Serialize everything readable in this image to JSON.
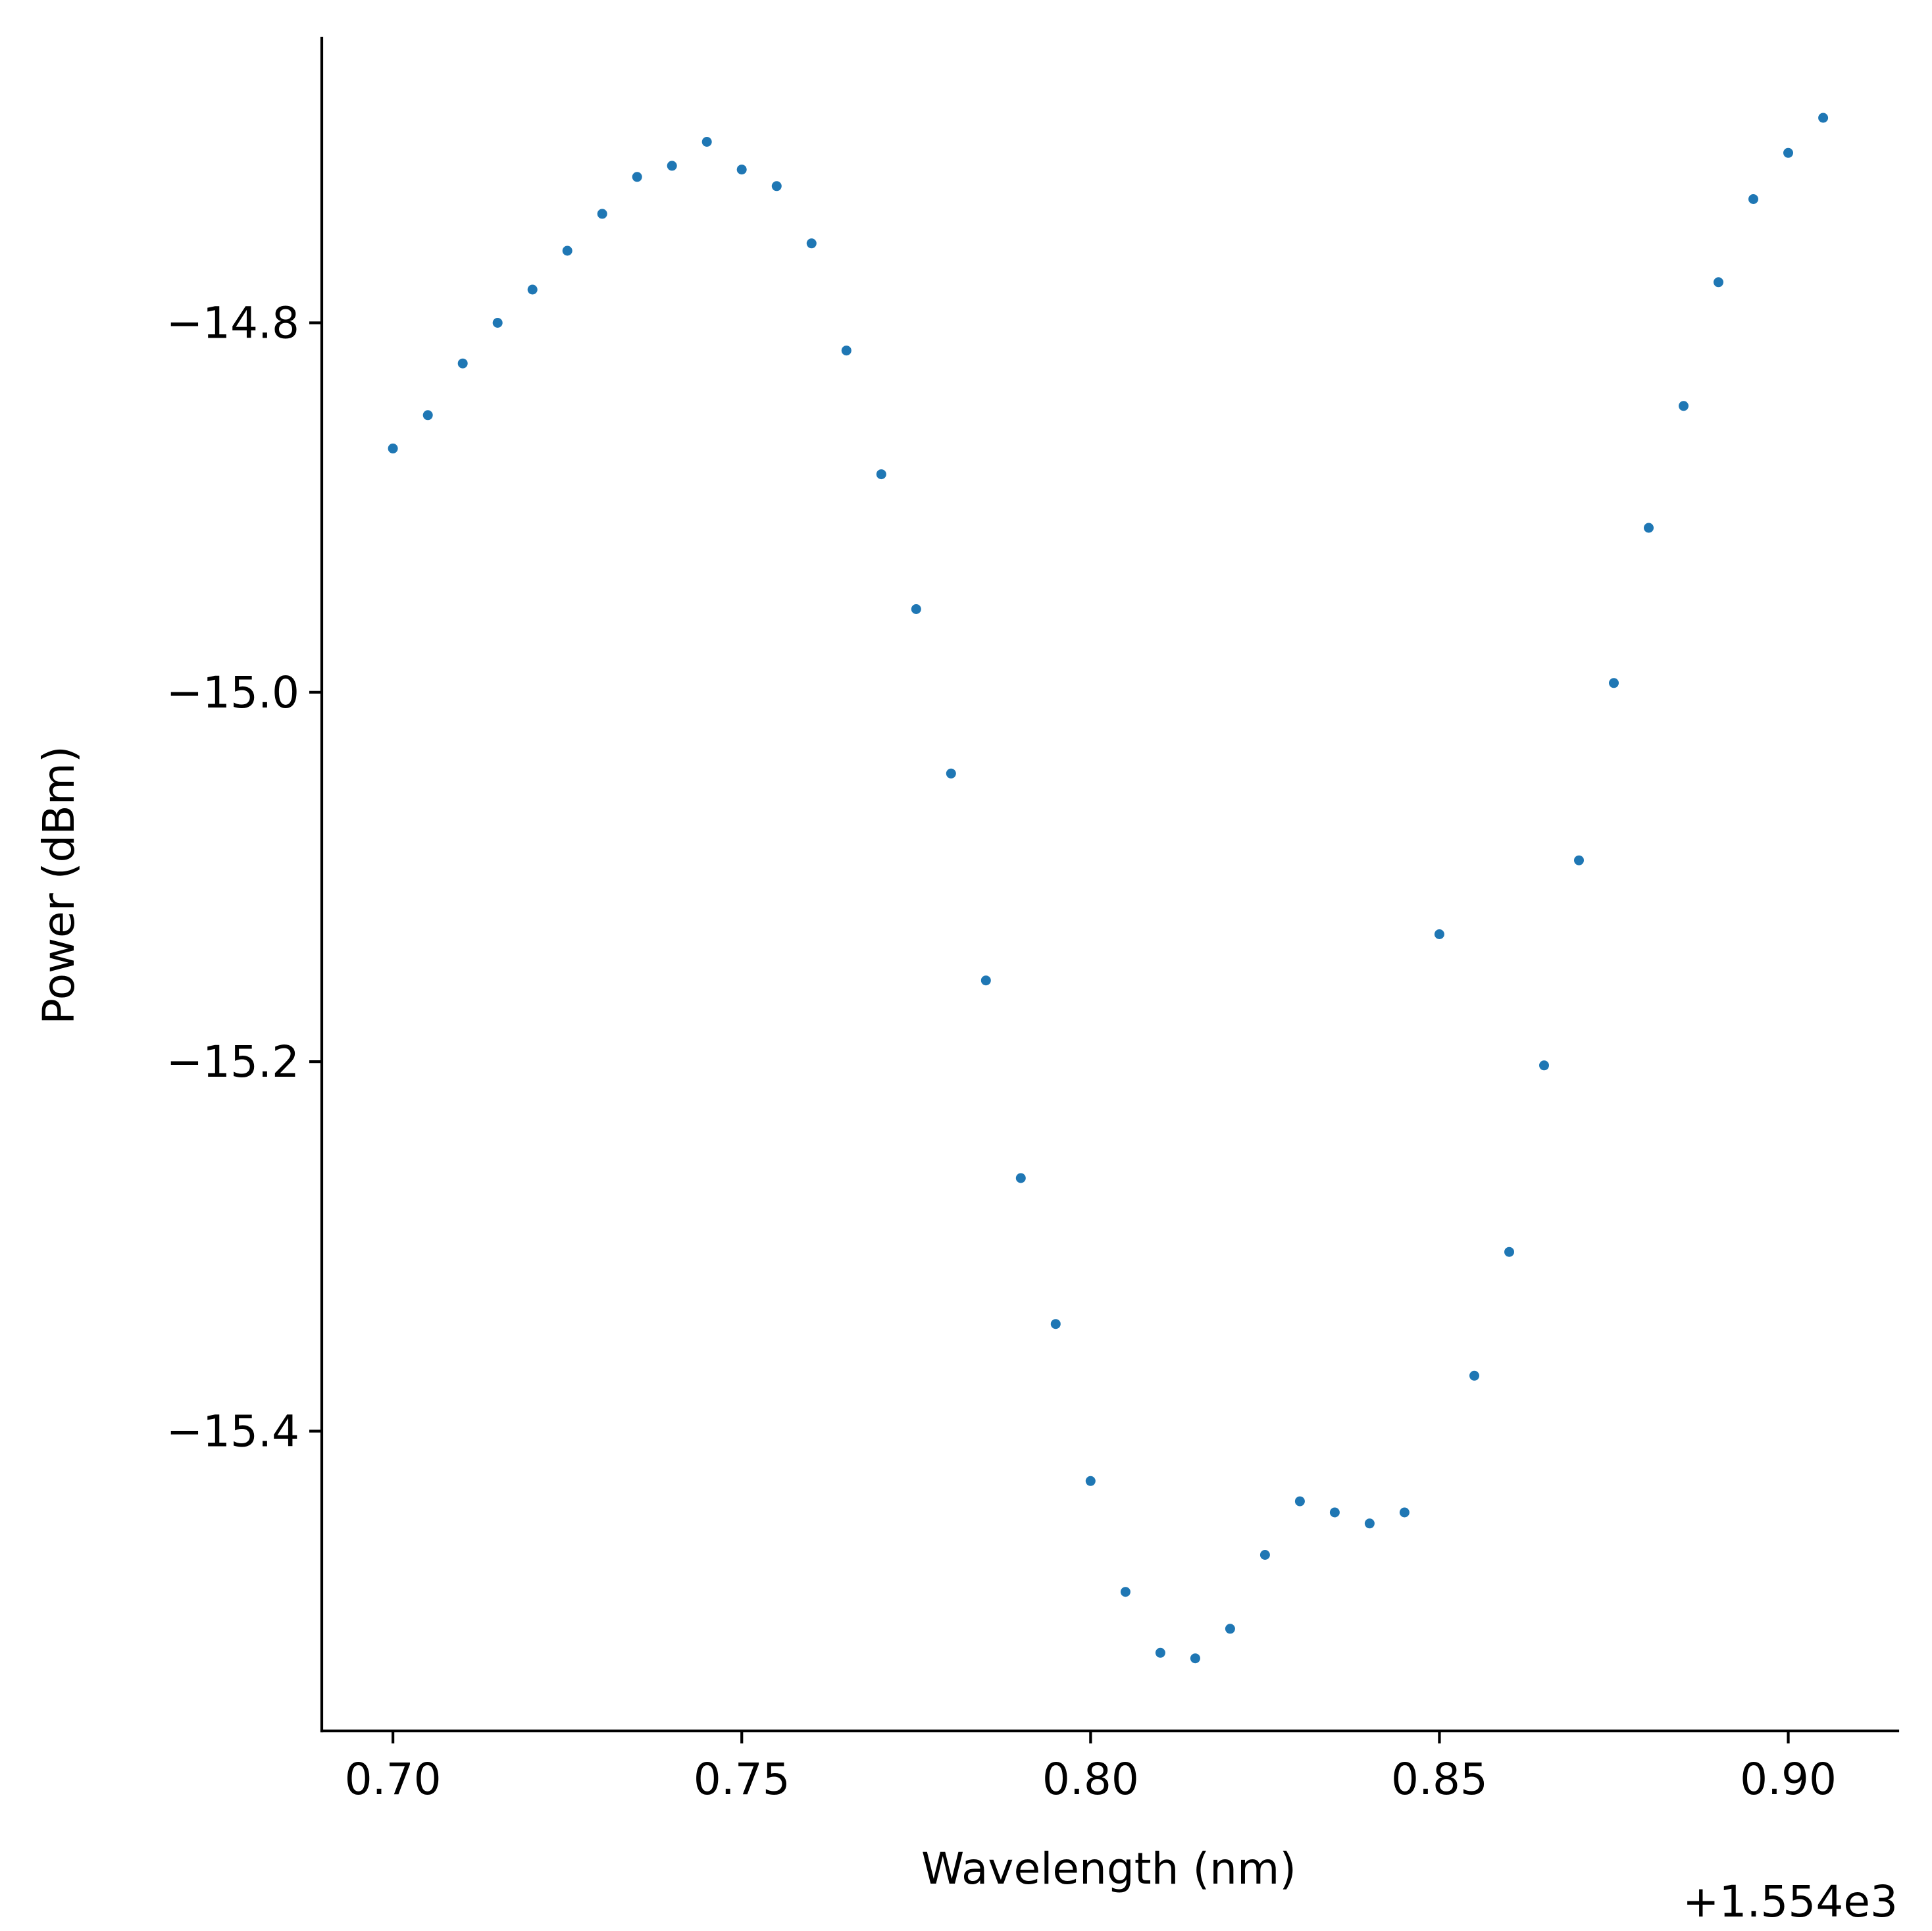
{
  "chart_data": {
    "type": "scatter",
    "title": "",
    "xlabel": "Wavelength (nm)",
    "ylabel": "Power (dBm)",
    "x_offset_label": "+1.554e3",
    "x_tick_labels": [
      "0.70",
      "0.75",
      "0.80",
      "0.85",
      "0.90"
    ],
    "y_tick_labels": [
      "−15.4",
      "−15.2",
      "−15.0",
      "−14.8"
    ],
    "xlim": [
      0.6898,
      0.9157
    ],
    "ylim": [
      -15.5623,
      -14.6459
    ],
    "grid": false,
    "legend": "none",
    "marker_color": "#1f77b4",
    "series": [
      {
        "x": [
          0.7,
          0.705,
          0.71,
          0.715,
          0.72,
          0.725,
          0.73,
          0.735,
          0.74,
          0.745,
          0.75,
          0.755,
          0.76,
          0.765,
          0.77,
          0.775,
          0.78,
          0.785,
          0.79,
          0.795,
          0.8,
          0.805,
          0.81,
          0.815,
          0.82,
          0.825,
          0.83,
          0.835,
          0.84,
          0.845,
          0.85,
          0.855,
          0.86,
          0.865,
          0.87,
          0.875,
          0.88,
          0.885,
          0.89,
          0.895,
          0.9,
          0.905
        ],
        "y": [
          -14.868,
          -14.85,
          -14.822,
          -14.8,
          -14.782,
          -14.761,
          -14.741,
          -14.721,
          -14.715,
          -14.702,
          -14.717,
          -14.726,
          -14.757,
          -14.815,
          -14.882,
          -14.955,
          -15.044,
          -15.156,
          -15.263,
          -15.342,
          -15.427,
          -15.487,
          -15.52,
          -15.523,
          -15.507,
          -15.467,
          -15.438,
          -15.444,
          -15.45,
          -15.444,
          -15.131,
          -15.37,
          -15.303,
          -15.202,
          -15.091,
          -14.995,
          -14.911,
          -14.845,
          -14.778,
          -14.733,
          -14.708,
          -14.689
        ]
      }
    ]
  }
}
